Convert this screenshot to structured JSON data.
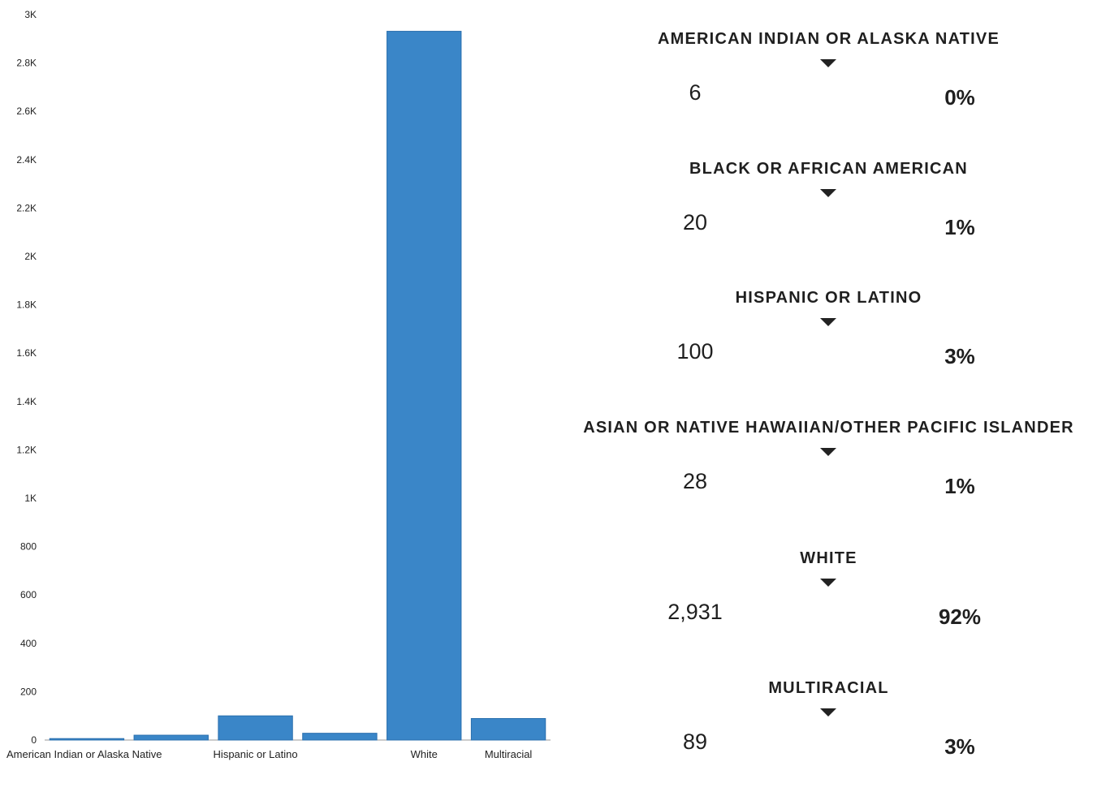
{
  "chart_data": {
    "type": "bar",
    "title": "",
    "xlabel": "",
    "ylabel": "",
    "categories": [
      "American Indian or Alaska Native",
      "Black or African American",
      "Hispanic or Latino",
      "Asian or Native Hawaiian/Other Pacific Islander",
      "White",
      "Multiracial"
    ],
    "shown_category_labels": [
      "American Indian or Alaska Native",
      "",
      "Hispanic or Latino",
      "",
      "White",
      "Multiracial"
    ],
    "values": [
      6,
      20,
      100,
      28,
      2931,
      89
    ],
    "ylim": [
      0,
      3000
    ],
    "yticks": [
      0,
      200,
      400,
      600,
      800,
      1000,
      1200,
      1400,
      1600,
      1800,
      2000,
      2200,
      2400,
      2600,
      2800,
      3000
    ],
    "ytick_labels": [
      "0",
      "200",
      "400",
      "600",
      "800",
      "1K",
      "1.2K",
      "1.4K",
      "1.6K",
      "1.8K",
      "2K",
      "2.2K",
      "2.4K",
      "2.6K",
      "2.8K",
      "3K"
    ],
    "grid": false,
    "legend": "none",
    "bar_color": "#3a86c8"
  },
  "stats": [
    {
      "label": "AMERICAN INDIAN OR ALASKA NATIVE",
      "count": "6",
      "percent": "0%"
    },
    {
      "label": "BLACK OR AFRICAN AMERICAN",
      "count": "20",
      "percent": "1%"
    },
    {
      "label": "HISPANIC OR LATINO",
      "count": "100",
      "percent": "3%"
    },
    {
      "label": "ASIAN OR NATIVE HAWAIIAN/OTHER PACIFIC ISLANDER",
      "count": "28",
      "percent": "1%"
    },
    {
      "label": "WHITE",
      "count": "2,931",
      "percent": "92%"
    },
    {
      "label": "MULTIRACIAL",
      "count": "89",
      "percent": "3%"
    }
  ]
}
